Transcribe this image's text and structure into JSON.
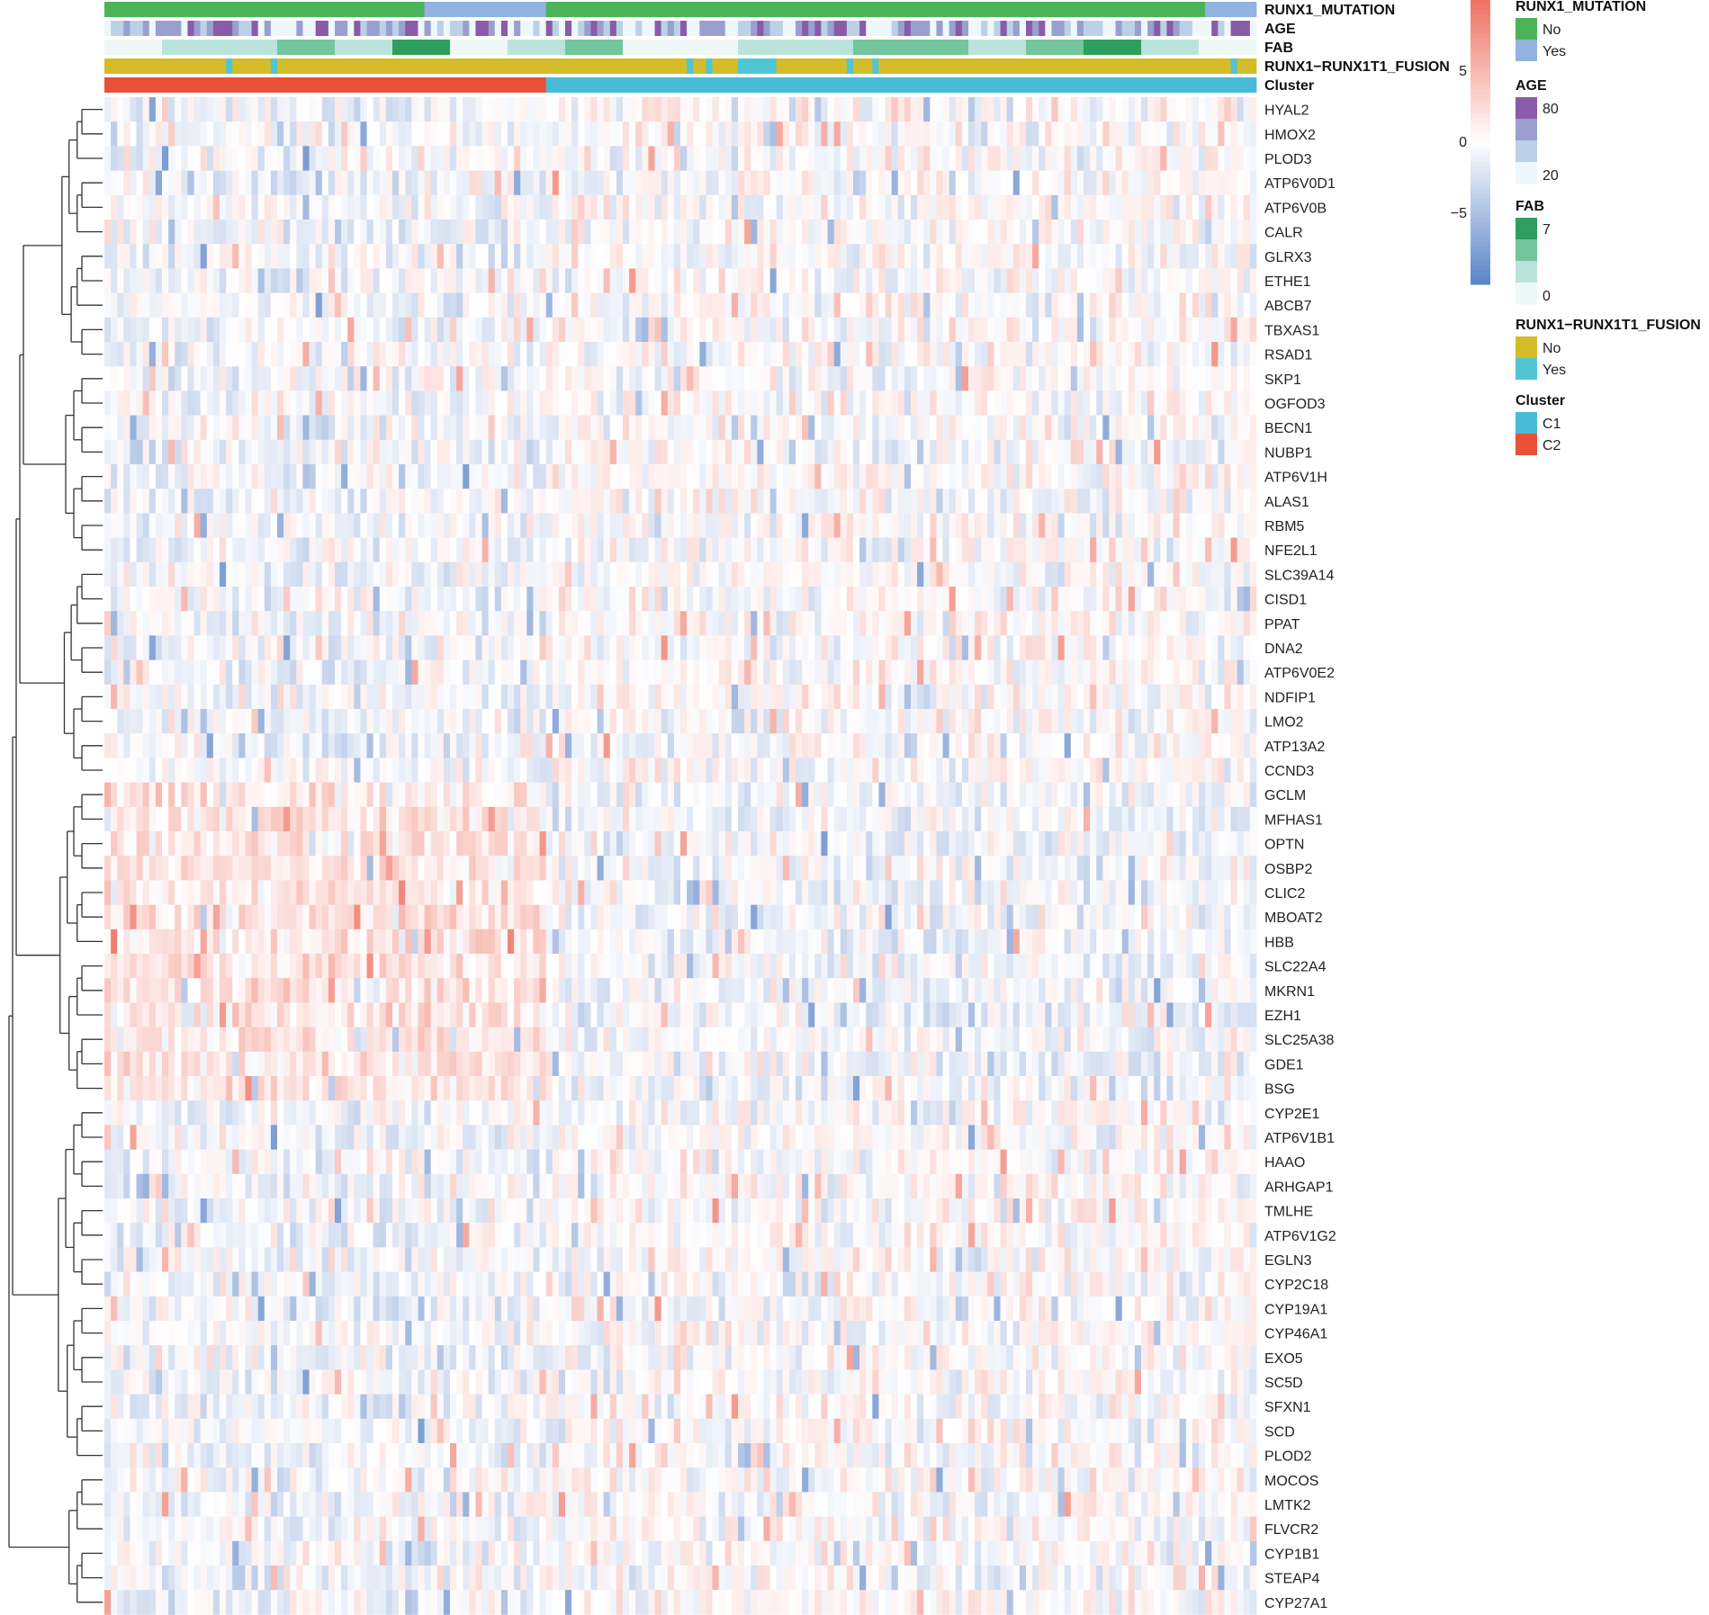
{
  "chart_data": {
    "type": "heatmap",
    "title": "",
    "n_samples": 180,
    "row_clustering": true,
    "color_scale": {
      "min": -5,
      "max": 5,
      "mid": 0,
      "ticks": [
        5,
        0,
        -5
      ],
      "tick_labels": [
        "5",
        "0",
        "−5"
      ],
      "low_color": "#5e86c9",
      "mid_color": "#ffffff",
      "high_color": "#f07464"
    },
    "genes": [
      "HYAL2",
      "HMOX2",
      "PLOD3",
      "ATP6V0D1",
      "ATP6V0B",
      "CALR",
      "GLRX3",
      "ETHE1",
      "ABCB7",
      "TBXAS1",
      "RSAD1",
      "SKP1",
      "OGFOD3",
      "BECN1",
      "NUBP1",
      "ATP6V1H",
      "ALAS1",
      "RBM5",
      "NFE2L1",
      "SLC39A14",
      "CISD1",
      "PPAT",
      "DNA2",
      "ATP6V0E2",
      "NDFIP1",
      "LMO2",
      "ATP13A2",
      "CCND3",
      "GCLM",
      "MFHAS1",
      "OPTN",
      "OSBP2",
      "CLIC2",
      "MBOAT2",
      "HBB",
      "SLC22A4",
      "MKRN1",
      "EZH1",
      "SLC25A38",
      "GDE1",
      "BSG",
      "CYP2E1",
      "ATP6V1B1",
      "HAAO",
      "ARHGAP1",
      "TMLHE",
      "ATP6V1G2",
      "EGLN3",
      "CYP2C18",
      "CYP19A1",
      "CYP46A1",
      "EXO5",
      "SC5D",
      "SFXN1",
      "SCD",
      "PLOD2",
      "MOCOS",
      "LMTK2",
      "FLVCR2",
      "CYP1B1",
      "STEAP4",
      "CYP27A1"
    ],
    "column_annotations": [
      {
        "name": "RUNX1_MUTATION",
        "type": "categorical",
        "segments": [
          {
            "value": "No",
            "start": 0,
            "end": 50
          },
          {
            "value": "Yes",
            "start": 50,
            "end": 69
          },
          {
            "value": "No",
            "start": 69,
            "end": 172
          },
          {
            "value": "Yes",
            "start": 172,
            "end": 180
          }
        ]
      },
      {
        "name": "AGE",
        "type": "continuous",
        "range": [
          20,
          80
        ]
      },
      {
        "name": "FAB",
        "type": "continuous",
        "range": [
          0,
          7
        ]
      },
      {
        "name": "RUNX1−RUNX1T1_FUSION",
        "type": "categorical",
        "segments": [
          {
            "value": "No",
            "start": 0,
            "end": 19
          },
          {
            "value": "Yes",
            "start": 19,
            "end": 20
          },
          {
            "value": "No",
            "start": 20,
            "end": 26
          },
          {
            "value": "Yes",
            "start": 26,
            "end": 27
          },
          {
            "value": "No",
            "start": 27,
            "end": 91
          },
          {
            "value": "Yes",
            "start": 91,
            "end": 92
          },
          {
            "value": "No",
            "start": 92,
            "end": 94
          },
          {
            "value": "Yes",
            "start": 94,
            "end": 95
          },
          {
            "value": "No",
            "start": 95,
            "end": 99
          },
          {
            "value": "Yes",
            "start": 99,
            "end": 105
          },
          {
            "value": "No",
            "start": 105,
            "end": 116
          },
          {
            "value": "Yes",
            "start": 116,
            "end": 117
          },
          {
            "value": "No",
            "start": 117,
            "end": 120
          },
          {
            "value": "Yes",
            "start": 120,
            "end": 121
          },
          {
            "value": "No",
            "start": 121,
            "end": 176
          },
          {
            "value": "Yes",
            "start": 176,
            "end": 177
          },
          {
            "value": "No",
            "start": 177,
            "end": 180
          }
        ]
      },
      {
        "name": "Cluster",
        "type": "categorical",
        "segments": [
          {
            "value": "C2",
            "start": 0,
            "end": 69
          },
          {
            "value": "C1",
            "start": 69,
            "end": 180
          }
        ]
      }
    ],
    "legends": [
      {
        "title": "RUNX1_MUTATION",
        "kind": "discrete",
        "items": [
          {
            "label": "No",
            "color": "#4bb45a"
          },
          {
            "label": "Yes",
            "color": "#93b3e0"
          }
        ]
      },
      {
        "title": "AGE",
        "kind": "continuous",
        "colors": [
          "#8a5ba8",
          "#9a9fcf",
          "#bcd1e8",
          "#eef7fb"
        ],
        "top_label": "80",
        "bottom_label": "20"
      },
      {
        "title": "FAB",
        "kind": "continuous",
        "colors": [
          "#2e9e5e",
          "#72c59c",
          "#b9e3db",
          "#eef8f7"
        ],
        "top_label": "7",
        "bottom_label": "0"
      },
      {
        "title": "RUNX1−RUNX1T1_FUSION",
        "kind": "discrete",
        "items": [
          {
            "label": "No",
            "color": "#d4bc28"
          },
          {
            "label": "Yes",
            "color": "#4fc6d2"
          }
        ]
      },
      {
        "title": "Cluster",
        "kind": "discrete",
        "items": [
          {
            "label": "C1",
            "color": "#48bcd6"
          },
          {
            "label": "C2",
            "color": "#e8503a"
          }
        ]
      }
    ]
  }
}
